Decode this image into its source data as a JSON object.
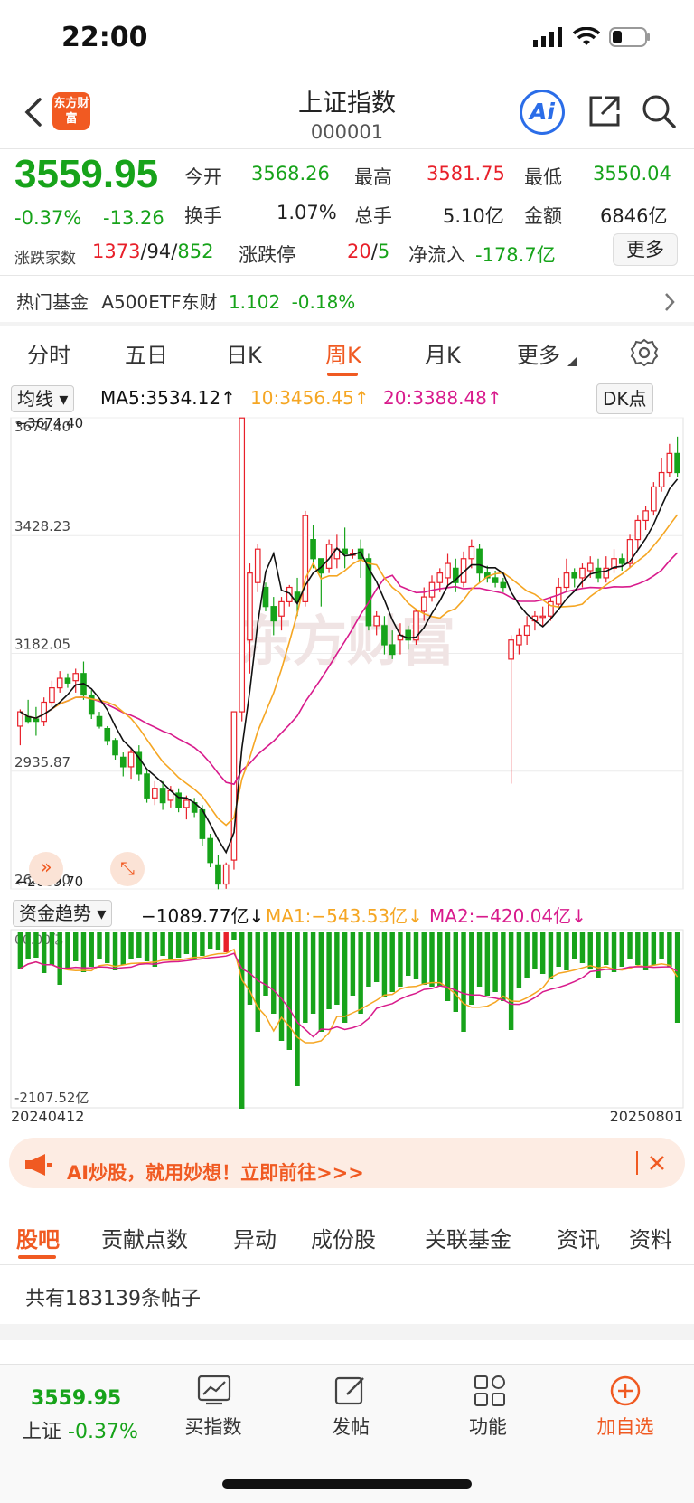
{
  "status_bar": {
    "time": "22:00"
  },
  "header": {
    "logo_text": "东方财富",
    "title": "上证指数",
    "code": "000001",
    "ai_label": "Ai"
  },
  "quote": {
    "price": "3559.95",
    "change_pct": "-0.37%",
    "change": "-13.26",
    "open_label": "今开",
    "open": "3568.26",
    "high_label": "最高",
    "high": "3581.75",
    "low_label": "最低",
    "low": "3550.04",
    "turnover_label": "换手",
    "turnover": "1.07%",
    "volume_label": "总手",
    "volume": "5.10亿",
    "amount_label": "金额",
    "amount": "6846亿",
    "breadth_label": "涨跌家数",
    "breadth_up": "1373",
    "breadth_flat": "94",
    "breadth_down": "852",
    "limit_label": "涨跌停",
    "limit_up": "20",
    "limit_down": "5",
    "inflow_label": "净流入",
    "inflow": "-178.7亿",
    "more_label": "更多"
  },
  "fund_row": {
    "label": "热门基金",
    "name": "A500ETF东财",
    "price": "1.102",
    "change": "-0.18%"
  },
  "tabs": [
    "分时",
    "五日",
    "日K",
    "周K",
    "月K",
    "更多"
  ],
  "chart_toolbar": {
    "ma_select": "均线",
    "ma5": "MA5:3534.12↑",
    "ma10": "10:3456.45↑",
    "ma20": "20:3388.48↑",
    "dk_label": "DK点"
  },
  "capital_toolbar": {
    "select": "资金趋势",
    "value": "−1089.77亿↓",
    "ma1": "MA1:−543.53亿↓",
    "ma2": "MA2:−420.04亿↓"
  },
  "chart_data": {
    "type": "candlestick",
    "y_ticks": [
      "3674.40",
      "3428.23",
      "3182.05",
      "2935.87",
      "2689.70"
    ],
    "ylim": [
      2689.7,
      3674.4
    ],
    "high_marker": "3674.40",
    "low_marker": "2689.70",
    "x_start": "20240412",
    "x_end": "20250801",
    "watermark": "东方财富",
    "candles": [
      [
        3030,
        3060,
        2990,
        3065
      ],
      [
        3050,
        3040,
        3035,
        3085
      ],
      [
        3045,
        3040,
        3010,
        3070
      ],
      [
        3040,
        3080,
        3030,
        3090
      ],
      [
        3080,
        3110,
        3070,
        3125
      ],
      [
        3110,
        3130,
        3100,
        3145
      ],
      [
        3130,
        3120,
        3110,
        3140
      ],
      [
        3125,
        3140,
        3100,
        3150
      ],
      [
        3140,
        3095,
        3085,
        3165
      ],
      [
        3095,
        3055,
        3045,
        3105
      ],
      [
        3050,
        3030,
        3025,
        3060
      ],
      [
        3025,
        3000,
        2990,
        3030
      ],
      [
        3000,
        2970,
        2960,
        3005
      ],
      [
        2965,
        2945,
        2925,
        2975
      ],
      [
        2945,
        2975,
        2920,
        2985
      ],
      [
        2975,
        2930,
        2915,
        2990
      ],
      [
        2930,
        2880,
        2870,
        2940
      ],
      [
        2880,
        2900,
        2865,
        2915
      ],
      [
        2900,
        2870,
        2855,
        2915
      ],
      [
        2875,
        2895,
        2860,
        2905
      ],
      [
        2890,
        2860,
        2850,
        2900
      ],
      [
        2860,
        2875,
        2835,
        2885
      ],
      [
        2870,
        2850,
        2840,
        2880
      ],
      [
        2855,
        2795,
        2780,
        2865
      ],
      [
        2795,
        2745,
        2735,
        2805
      ],
      [
        2740,
        2700,
        2689,
        2760
      ],
      [
        2700,
        2740,
        2690,
        2745
      ],
      [
        2750,
        3060,
        2730,
        3060
      ],
      [
        3060,
        3674,
        3040,
        3674
      ],
      [
        3210,
        3350,
        3140,
        3370
      ],
      [
        3330,
        3400,
        3310,
        3410
      ],
      [
        3320,
        3280,
        3270,
        3330
      ],
      [
        3280,
        3250,
        3220,
        3300
      ],
      [
        3260,
        3290,
        3230,
        3300
      ],
      [
        3290,
        3320,
        3280,
        3325
      ],
      [
        3310,
        3290,
        3260,
        3340
      ],
      [
        3290,
        3470,
        3280,
        3480
      ],
      [
        3420,
        3380,
        3360,
        3450
      ],
      [
        3380,
        3350,
        3280,
        3380
      ],
      [
        3360,
        3410,
        3350,
        3420
      ],
      [
        3380,
        3400,
        3360,
        3430
      ],
      [
        3400,
        3390,
        3360,
        3445
      ],
      [
        3390,
        3390,
        3380,
        3400
      ],
      [
        3400,
        3380,
        3340,
        3420
      ],
      [
        3380,
        3240,
        3230,
        3390
      ],
      [
        3240,
        3260,
        3220,
        3270
      ],
      [
        3240,
        3200,
        3180,
        3260
      ],
      [
        3200,
        3180,
        3170,
        3230
      ],
      [
        3210,
        3220,
        3180,
        3245
      ],
      [
        3230,
        3210,
        3190,
        3240
      ],
      [
        3210,
        3270,
        3200,
        3275
      ],
      [
        3270,
        3300,
        3250,
        3320
      ],
      [
        3300,
        3330,
        3290,
        3345
      ],
      [
        3330,
        3350,
        3310,
        3360
      ],
      [
        3340,
        3370,
        3320,
        3390
      ],
      [
        3360,
        3330,
        3310,
        3380
      ],
      [
        3330,
        3380,
        3320,
        3395
      ],
      [
        3380,
        3405,
        3360,
        3420
      ],
      [
        3400,
        3350,
        3330,
        3410
      ],
      [
        3350,
        3340,
        3330,
        3365
      ],
      [
        3340,
        3330,
        3320,
        3355
      ],
      [
        3330,
        3320,
        3310,
        3340
      ],
      [
        3170,
        3210,
        2910,
        3220
      ],
      [
        3200,
        3220,
        3180,
        3235
      ],
      [
        3220,
        3240,
        3200,
        3260
      ],
      [
        3250,
        3260,
        3230,
        3270
      ],
      [
        3260,
        3260,
        3240,
        3280
      ],
      [
        3260,
        3290,
        3250,
        3300
      ],
      [
        3285,
        3320,
        3280,
        3340
      ],
      [
        3320,
        3350,
        3310,
        3380
      ],
      [
        3350,
        3340,
        3320,
        3360
      ],
      [
        3340,
        3360,
        3320,
        3370
      ],
      [
        3355,
        3370,
        3340,
        3385
      ],
      [
        3360,
        3340,
        3330,
        3380
      ],
      [
        3340,
        3360,
        3330,
        3385
      ],
      [
        3360,
        3380,
        3350,
        3400
      ],
      [
        3380,
        3370,
        3355,
        3390
      ],
      [
        3370,
        3420,
        3360,
        3430
      ],
      [
        3420,
        3460,
        3400,
        3470
      ],
      [
        3460,
        3480,
        3440,
        3490
      ],
      [
        3480,
        3530,
        3470,
        3540
      ],
      [
        3530,
        3560,
        3520,
        3590
      ],
      [
        3560,
        3600,
        3550,
        3620
      ],
      [
        3600,
        3560,
        3550,
        3635
      ]
    ],
    "capital_ylabel": "-2107.52亿",
    "capital_top_label": "00.00亿"
  },
  "banner": {
    "text": "AI炒股，就用妙想！立即前往>>>"
  },
  "sub_tabs": [
    "股吧",
    "贡献点数",
    "异动",
    "成份股",
    "关联基金",
    "资讯",
    "资料"
  ],
  "posts": {
    "text": "共有183139条帖子"
  },
  "bottom_nav": {
    "index_price": "3559.95",
    "index_label": "上证",
    "index_change": "-0.37%",
    "buy_label": "买指数",
    "post_label": "发帖",
    "func_label": "功能",
    "add_label": "加自选"
  },
  "colors": {
    "up": "#e8202a",
    "down": "#17a31a",
    "accent": "#f05a22",
    "ma5": "#111111",
    "ma10": "#f5a623",
    "ma20": "#d81b8c"
  }
}
